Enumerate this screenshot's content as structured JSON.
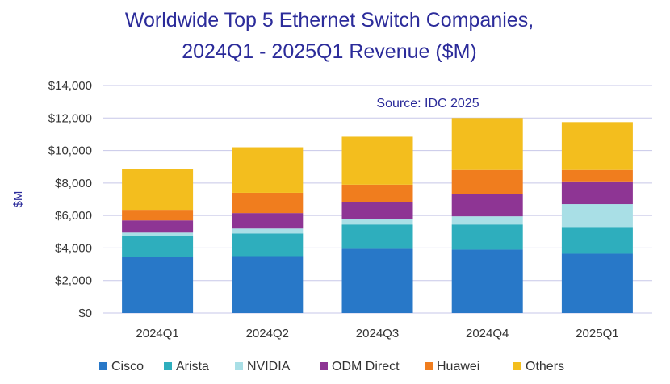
{
  "chart_data": {
    "type": "bar",
    "stacked": true,
    "title": "Worldwide Top 5 Ethernet Switch Companies,",
    "subtitle": "2024Q1 - 2025Q1 Revenue ($M)",
    "ylabel": "$M",
    "xlabel": "",
    "annotation": "Source: IDC 2025",
    "ylim": [
      0,
      14000
    ],
    "yticks": [
      0,
      2000,
      4000,
      6000,
      8000,
      10000,
      12000,
      14000
    ],
    "ytick_labels": [
      "$0",
      "$2,000",
      "$4,000",
      "$6,000",
      "$8,000",
      "$10,000",
      "$12,000",
      "$14,000"
    ],
    "categories": [
      "2024Q1",
      "2024Q2",
      "2024Q3",
      "2024Q4",
      "2025Q1"
    ],
    "grid": true,
    "legend_position": "bottom",
    "series": [
      {
        "name": "Cisco",
        "color": "#2878c8",
        "values": [
          3450,
          3500,
          3950,
          3900,
          3650
        ]
      },
      {
        "name": "Arista",
        "color": "#2eaebd",
        "values": [
          1300,
          1400,
          1500,
          1550,
          1600
        ]
      },
      {
        "name": "NVIDIA",
        "color": "#a9dfe6",
        "values": [
          200,
          300,
          350,
          500,
          1450
        ]
      },
      {
        "name": "ODM Direct",
        "color": "#8e3594",
        "values": [
          750,
          950,
          1050,
          1350,
          1400
        ]
      },
      {
        "name": "Huawei",
        "color": "#f07d1e",
        "values": [
          650,
          1250,
          1050,
          1500,
          700
        ]
      },
      {
        "name": "Others",
        "color": "#f3be1e",
        "values": [
          2500,
          2800,
          2950,
          3200,
          2950
        ]
      }
    ]
  }
}
